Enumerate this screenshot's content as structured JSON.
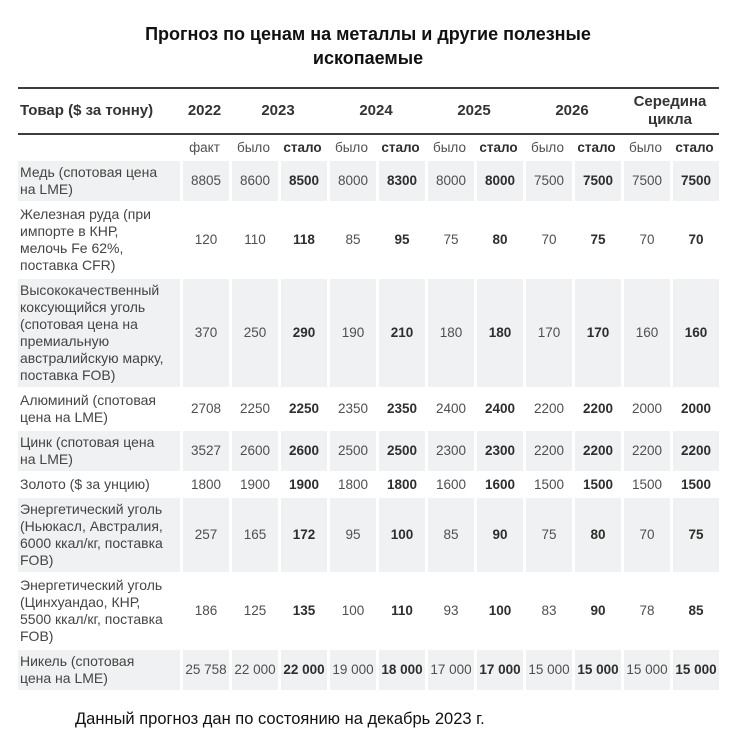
{
  "title": "Прогноз по ценам на металлы и другие полезные ископаемые",
  "footnote": "Данный прогноз дан по состоянию на декабрь 2023 г.",
  "colors": {
    "stripe": "#f0f1f2",
    "rule": "#3d3d3d",
    "text": "#4f4f4f",
    "text-bold": "#2e2e2e",
    "head": "#333333",
    "title": "#111111"
  },
  "table": {
    "product_header": "Товар ($ за тонну)",
    "year_groups": [
      {
        "label": "2022",
        "span": 1
      },
      {
        "label": "2023",
        "span": 2
      },
      {
        "label": "2024",
        "span": 2
      },
      {
        "label": "2025",
        "span": 2
      },
      {
        "label": "2026",
        "span": 2
      },
      {
        "label": "Середина цикла",
        "span": 2
      }
    ],
    "subheaders": [
      "факт",
      "было",
      "стало",
      "было",
      "стало",
      "было",
      "стало",
      "было",
      "стало",
      "было",
      "стало"
    ],
    "bold_subheader": "стало",
    "rows": [
      {
        "label": "Медь (спотовая цена на LME)",
        "striped": true,
        "values": [
          "8805",
          "8600",
          "8500",
          "8000",
          "8300",
          "8000",
          "8000",
          "7500",
          "7500",
          "7500",
          "7500"
        ]
      },
      {
        "label": "Железная руда (при импорте в КНР, мелочь Fe 62%, поставка CFR)",
        "striped": false,
        "values": [
          "120",
          "110",
          "118",
          "85",
          "95",
          "75",
          "80",
          "70",
          "75",
          "70",
          "70"
        ]
      },
      {
        "label": "Высококачественный коксующийся уголь (спотовая цена на премиальную австралийскую марку, поставка FOB)",
        "striped": true,
        "values": [
          "370",
          "250",
          "290",
          "190",
          "210",
          "180",
          "180",
          "170",
          "170",
          "160",
          "160"
        ]
      },
      {
        "label": "Алюминий (спотовая цена на LME)",
        "striped": false,
        "values": [
          "2708",
          "2250",
          "2250",
          "2350",
          "2350",
          "2400",
          "2400",
          "2200",
          "2200",
          "2000",
          "2000"
        ]
      },
      {
        "label": "Цинк (спотовая цена на LME)",
        "striped": true,
        "values": [
          "3527",
          "2600",
          "2600",
          "2500",
          "2500",
          "2300",
          "2300",
          "2200",
          "2200",
          "2200",
          "2200"
        ]
      },
      {
        "label": "Золото ($ за унцию)",
        "striped": false,
        "values": [
          "1800",
          "1900",
          "1900",
          "1800",
          "1800",
          "1600",
          "1600",
          "1500",
          "1500",
          "1500",
          "1500"
        ]
      },
      {
        "label": "Энергетический уголь (Ньюкасл, Австралия, 6000 ккал/кг, поставка FOB)",
        "striped": true,
        "values": [
          "257",
          "165",
          "172",
          "95",
          "100",
          "85",
          "90",
          "75",
          "80",
          "70",
          "75"
        ]
      },
      {
        "label": "Энергетический уголь (Цинхуандао, КНР, 5500 ккал/кг, поставка FOB)",
        "striped": false,
        "values": [
          "186",
          "125",
          "135",
          "100",
          "110",
          "93",
          "100",
          "83",
          "90",
          "78",
          "85"
        ]
      },
      {
        "label": "Никель (спотовая цена на LME)",
        "striped": true,
        "values": [
          "25 758",
          "22 000",
          "22 000",
          "19 000",
          "18 000",
          "17 000",
          "17 000",
          "15 000",
          "15 000",
          "15 000",
          "15 000"
        ]
      }
    ]
  }
}
